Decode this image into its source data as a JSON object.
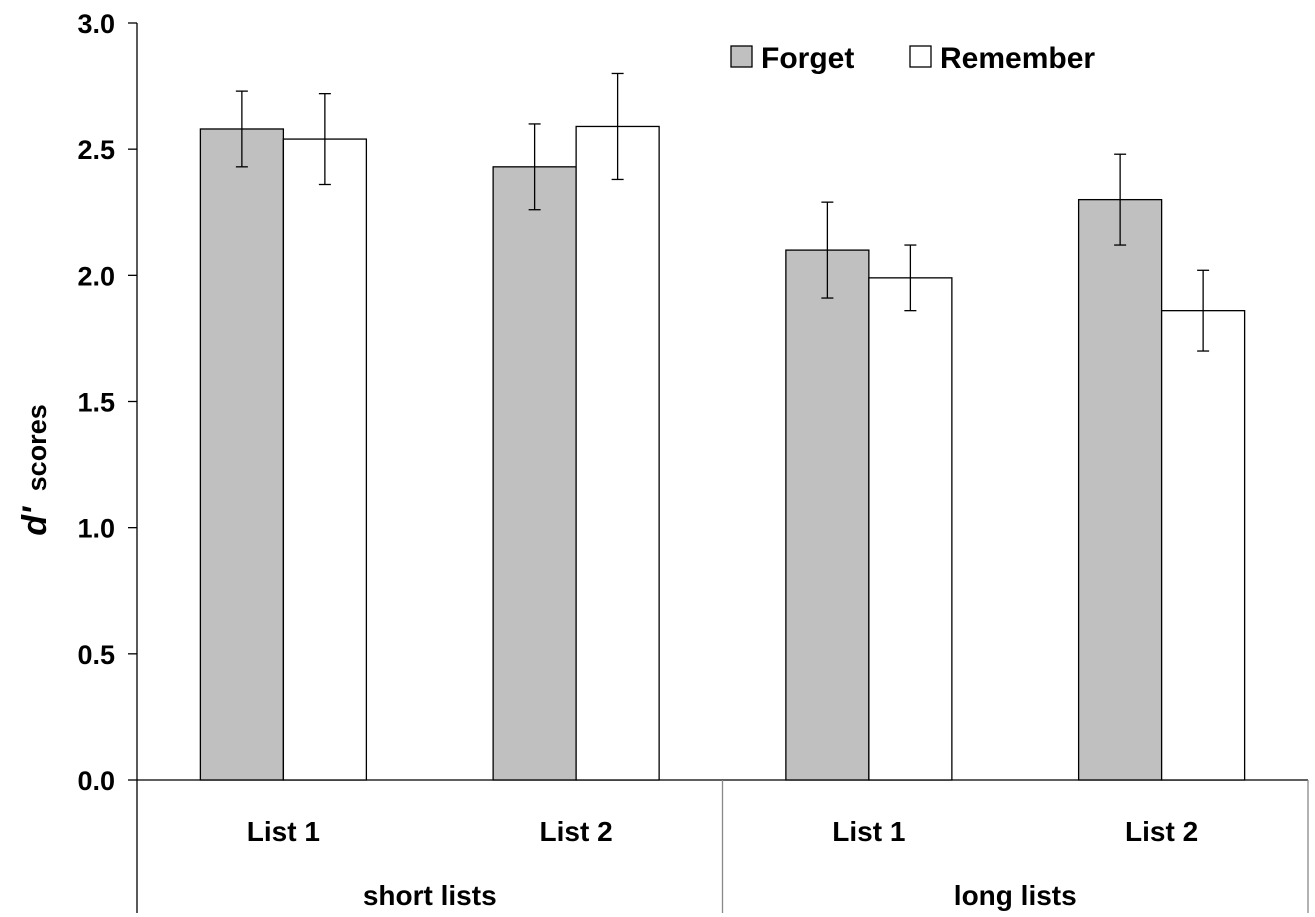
{
  "chart_data": {
    "type": "bar",
    "ylabel": {
      "symbol": "d'",
      "text": "scores"
    },
    "ylim": [
      0,
      3.0
    ],
    "yticks": [
      "0.0",
      "0.5",
      "1.0",
      "1.5",
      "2.0",
      "2.5",
      "3.0"
    ],
    "groups": [
      {
        "label": "short lists",
        "categories": [
          "List 1",
          "List 2"
        ]
      },
      {
        "label": "long lists",
        "categories": [
          "List 1",
          "List 2"
        ]
      }
    ],
    "series": [
      {
        "name": "Forget",
        "color": "#c0c0c0",
        "values": [
          2.58,
          2.43,
          2.1,
          2.3
        ],
        "errors": [
          0.15,
          0.17,
          0.19,
          0.18
        ]
      },
      {
        "name": "Remember",
        "color": "#ffffff",
        "values": [
          2.54,
          2.59,
          1.99,
          1.86
        ],
        "errors": [
          0.18,
          0.21,
          0.13,
          0.16
        ]
      }
    ],
    "legend": "top-right",
    "grid": false
  }
}
